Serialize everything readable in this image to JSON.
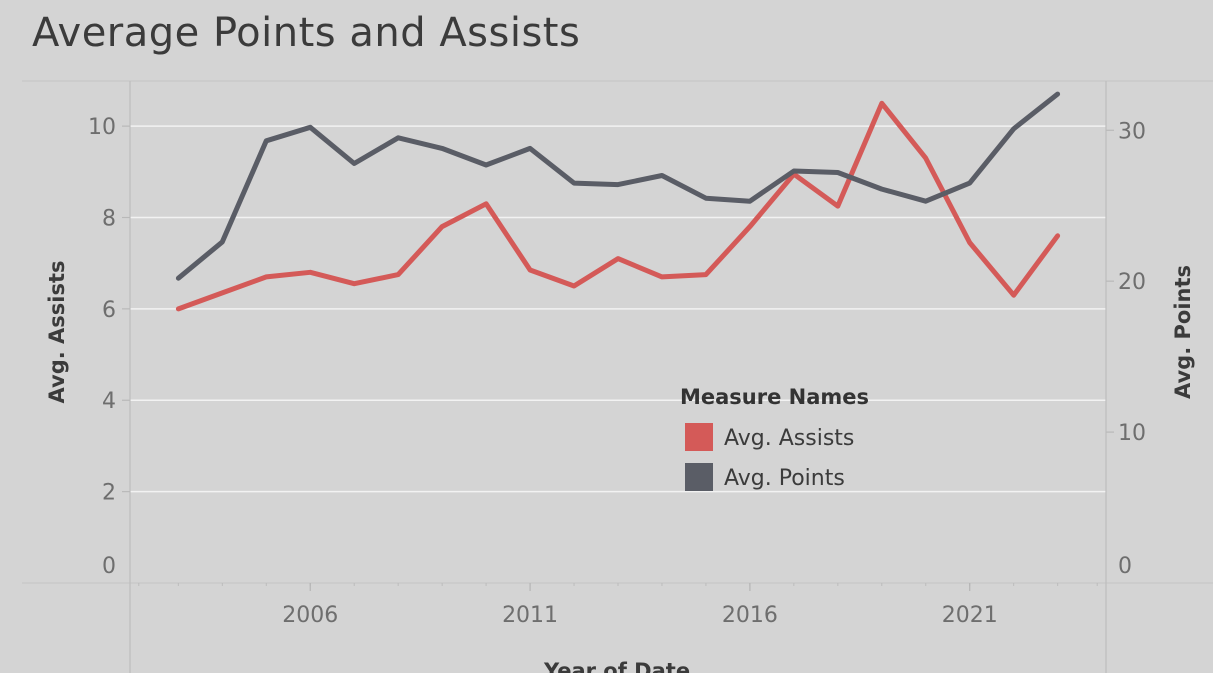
{
  "title": "Average Points and Assists",
  "chart_data": {
    "type": "line",
    "title": "Average Points and Assists",
    "xlabel": "Year of Date",
    "ylabel_left": "Avg. Assists",
    "ylabel_right": "Avg. Points",
    "x": [
      2003,
      2004,
      2005,
      2006,
      2007,
      2008,
      2009,
      2010,
      2011,
      2012,
      2013,
      2014,
      2015,
      2016,
      2017,
      2018,
      2019,
      2020,
      2021,
      2022,
      2023
    ],
    "x_ticks": [
      2006,
      2011,
      2016,
      2021
    ],
    "x_tick_labels": [
      "2006",
      "2011",
      "2016",
      "2021"
    ],
    "xlim": [
      2001.9,
      2024.1
    ],
    "y_left_lim": [
      0,
      10.9
    ],
    "y_left_ticks": [
      0,
      2,
      4,
      6,
      8,
      10
    ],
    "y_left_tick_labels": [
      "0",
      "2",
      "4",
      "6",
      "8",
      "10"
    ],
    "y_right_lim": [
      0,
      33
    ],
    "y_right_ticks": [
      0,
      10,
      20,
      30
    ],
    "y_right_tick_labels": [
      "0",
      "10",
      "20",
      "30"
    ],
    "grid": true,
    "series": [
      {
        "name": "Avg. Assists",
        "axis": "left",
        "color": "#d45a58",
        "values": [
          6.0,
          6.35,
          6.7,
          6.8,
          6.55,
          6.75,
          7.8,
          8.3,
          6.85,
          6.5,
          7.1,
          6.7,
          6.75,
          7.8,
          8.95,
          8.25,
          10.5,
          9.3,
          7.45,
          6.3,
          7.6
        ]
      },
      {
        "name": "Avg. Points",
        "axis": "right",
        "color": "#5a5d66",
        "values": [
          20.2,
          22.6,
          29.3,
          30.2,
          27.8,
          29.5,
          28.8,
          27.7,
          28.8,
          26.5,
          26.4,
          27.0,
          25.5,
          25.3,
          27.3,
          27.2,
          26.1,
          25.3,
          26.5,
          30.1,
          32.4
        ]
      }
    ],
    "legend": {
      "title": "Measure Names",
      "placement": "center"
    }
  }
}
